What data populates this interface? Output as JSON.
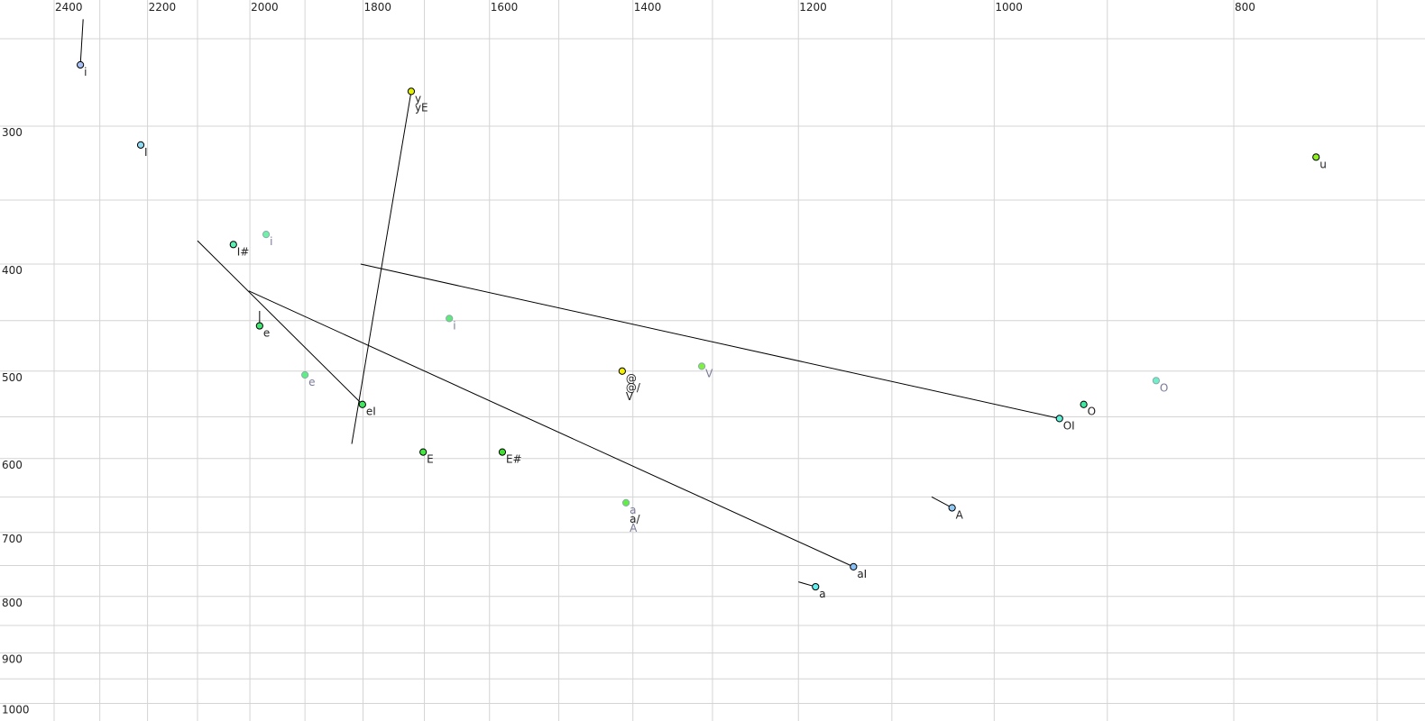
{
  "chart_data": {
    "type": "scatter",
    "title": "",
    "xlabel": "",
    "ylabel": "",
    "x_axis": {
      "quantity": "F2",
      "scale": "log",
      "reversed": true,
      "range": [
        700,
        2500
      ],
      "position": "top",
      "tick_labels": [
        "2400",
        "2200",
        "2000",
        "1800",
        "1600",
        "1400",
        "1200",
        "1000",
        "800"
      ],
      "grid_step": 100
    },
    "y_axis": {
      "quantity": "F1",
      "scale": "log",
      "reversed": false,
      "range": [
        250,
        1000
      ],
      "position": "left",
      "tick_labels": [
        "300",
        "400",
        "500",
        "600",
        "700",
        "800",
        "900",
        "1000"
      ],
      "grid_step": 50
    },
    "grid": true,
    "points": [
      {
        "f2": 2342,
        "f1": 264,
        "color": "#a8c0f4",
        "secondary": false,
        "labels": [
          "i"
        ],
        "from": [
          2336,
          240
        ]
      },
      {
        "f2": 2214,
        "f1": 312,
        "color": "#90dcf4",
        "secondary": false,
        "labels": [
          "I"
        ]
      },
      {
        "f2": 2031,
        "f1": 384,
        "color": "#5cf0b0",
        "secondary": false,
        "labels": [
          "I#"
        ]
      },
      {
        "f2": 1970,
        "f1": 376,
        "color": "#70f0a8",
        "secondary": true,
        "labels": [
          "i"
        ]
      },
      {
        "f2": 1982,
        "f1": 455,
        "color": "#3ee870",
        "secondary": false,
        "labels": [
          "e"
        ],
        "from": [
          1982,
          441
        ]
      },
      {
        "f2": 1900,
        "f1": 504,
        "color": "#5cf080",
        "secondary": true,
        "labels": [
          "e"
        ]
      },
      {
        "f2": 1801,
        "f1": 536,
        "color": "#40e860",
        "secondary": false,
        "labels": [
          "eI"
        ],
        "from": [
          2100,
          381
        ]
      },
      {
        "f2": 1721,
        "f1": 279,
        "color": "#e0f000",
        "secondary": false,
        "labels": [
          "y",
          "yE"
        ],
        "from": [
          1819,
          582
        ]
      },
      {
        "f2": 1661,
        "f1": 448,
        "color": "#60e878",
        "secondary": true,
        "labels": [
          "i"
        ]
      },
      {
        "f2": 1702,
        "f1": 592,
        "color": "#40e840",
        "secondary": false,
        "labels": [
          "E"
        ]
      },
      {
        "f2": 1581,
        "f1": 592,
        "color": "#40e030",
        "secondary": false,
        "labels": [
          "E#"
        ]
      },
      {
        "f2": 1414,
        "f1": 500,
        "color": "#f4f000",
        "secondary": false,
        "labels": [
          "@",
          "@/",
          "V"
        ]
      },
      {
        "f2": 1313,
        "f1": 495,
        "color": "#80f040",
        "secondary": true,
        "labels": [
          "V"
        ]
      },
      {
        "f2": 1409,
        "f1": 658,
        "color": "#60f040",
        "secondary": true,
        "labels": [
          "a",
          "a/",
          "A"
        ],
        "label_secondary": [
          true,
          false,
          true
        ]
      },
      {
        "f2": 1040,
        "f1": 665,
        "color": "#90c8f4",
        "secondary": false,
        "labels": [
          "A"
        ],
        "from": [
          1060,
          650
        ]
      },
      {
        "f2": 1181,
        "f1": 784,
        "color": "#60f0f0",
        "secondary": false,
        "labels": [
          "a"
        ],
        "from": [
          1200,
          776
        ]
      },
      {
        "f2": 1140,
        "f1": 752,
        "color": "#88c0f8",
        "secondary": false,
        "labels": [
          "aI"
        ],
        "from": [
          2002,
          423
        ]
      },
      {
        "f2": 941,
        "f1": 552,
        "color": "#60f0d8",
        "secondary": false,
        "labels": [
          "OI"
        ],
        "from": [
          1804,
          400
        ]
      },
      {
        "f2": 920,
        "f1": 536,
        "color": "#40e8a0",
        "secondary": false,
        "labels": [
          "O"
        ]
      },
      {
        "f2": 860,
        "f1": 510,
        "color": "#70f0c8",
        "secondary": true,
        "labels": [
          "O"
        ]
      },
      {
        "f2": 741,
        "f1": 320,
        "color": "#90f020",
        "secondary": false,
        "labels": [
          "u"
        ]
      }
    ],
    "colors": {
      "grid": "#d4d4d4",
      "text": "#222222",
      "secondary_text": "#7a7a9a",
      "trajectory": "#000000"
    }
  }
}
